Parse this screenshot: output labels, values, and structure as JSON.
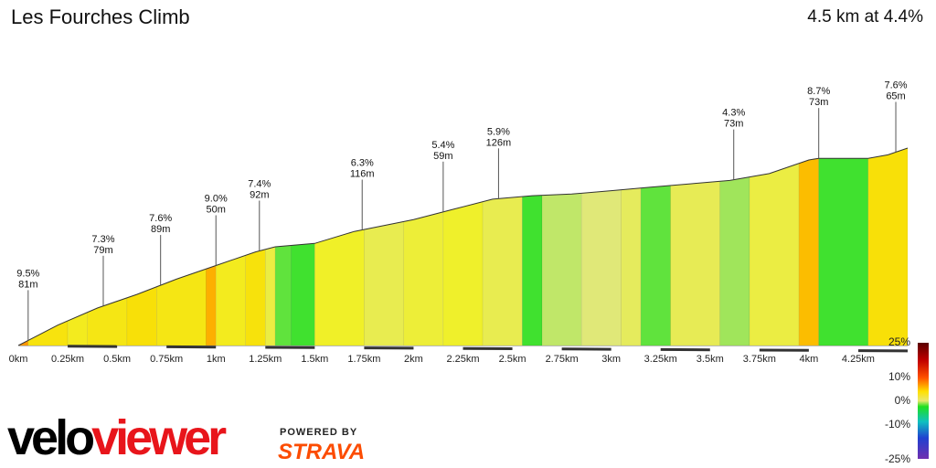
{
  "title": "Les Fourches Climb",
  "summary": "4.5 km at 4.4%",
  "branding": {
    "logo_part1": "velo",
    "logo_part2": "viewer",
    "powered_by": "POWERED BY",
    "strava": "STRAVA"
  },
  "colors": {
    "line": "#333333",
    "shade": "#555555"
  },
  "chart_data": {
    "type": "area",
    "xlabel": "",
    "ylabel": "",
    "x_ticks": [
      "0km",
      "0.25km",
      "0.5km",
      "0.75km",
      "1km",
      "1.25km",
      "1.5km",
      "1.75km",
      "2km",
      "2.25km",
      "2.5km",
      "2.75km",
      "3km",
      "3.25km",
      "3.5km",
      "3.75km",
      "4km",
      "4.25km"
    ],
    "xlim_km": [
      0,
      4.5
    ],
    "profile_x_km": [
      0,
      0.05,
      0.2,
      0.4,
      0.6,
      0.8,
      1.0,
      1.2,
      1.3,
      1.5,
      1.7,
      2.0,
      2.2,
      2.4,
      2.6,
      2.8,
      3.0,
      3.2,
      3.4,
      3.6,
      3.8,
      4.0,
      4.05,
      4.3,
      4.4,
      4.5
    ],
    "profile_rel_height": [
      0,
      0.03,
      0.12,
      0.22,
      0.3,
      0.39,
      0.47,
      0.55,
      0.58,
      0.6,
      0.67,
      0.74,
      0.8,
      0.86,
      0.88,
      0.89,
      0.91,
      0.93,
      0.95,
      0.97,
      1.01,
      1.09,
      1.1,
      1.1,
      1.12,
      1.16
    ],
    "segments": [
      {
        "start_km": 0.0,
        "end_km": 0.05,
        "grade": 9.5
      },
      {
        "start_km": 0.05,
        "end_km": 0.25,
        "grade": 7.3
      },
      {
        "start_km": 0.25,
        "end_km": 0.35,
        "grade": 6.5
      },
      {
        "start_km": 0.35,
        "end_km": 0.55,
        "grade": 7.0
      },
      {
        "start_km": 0.55,
        "end_km": 0.7,
        "grade": 7.6
      },
      {
        "start_km": 0.7,
        "end_km": 0.95,
        "grade": 7.0
      },
      {
        "start_km": 0.95,
        "end_km": 1.0,
        "grade": 9.0
      },
      {
        "start_km": 1.0,
        "end_km": 1.15,
        "grade": 6.5
      },
      {
        "start_km": 1.15,
        "end_km": 1.25,
        "grade": 7.4
      },
      {
        "start_km": 1.25,
        "end_km": 1.3,
        "grade": 5.0
      },
      {
        "start_km": 1.3,
        "end_km": 1.38,
        "grade": 1.0
      },
      {
        "start_km": 1.38,
        "end_km": 1.5,
        "grade": 0.5
      },
      {
        "start_km": 1.5,
        "end_km": 1.75,
        "grade": 6.0
      },
      {
        "start_km": 1.75,
        "end_km": 1.95,
        "grade": 4.5
      },
      {
        "start_km": 1.95,
        "end_km": 2.15,
        "grade": 5.4
      },
      {
        "start_km": 2.15,
        "end_km": 2.35,
        "grade": 5.9
      },
      {
        "start_km": 2.35,
        "end_km": 2.55,
        "grade": 4.5
      },
      {
        "start_km": 2.55,
        "end_km": 2.65,
        "grade": 0.5
      },
      {
        "start_km": 2.65,
        "end_km": 2.85,
        "grade": 2.5
      },
      {
        "start_km": 2.85,
        "end_km": 3.05,
        "grade": 3.0
      },
      {
        "start_km": 3.05,
        "end_km": 3.15,
        "grade": 4.0
      },
      {
        "start_km": 3.15,
        "end_km": 3.3,
        "grade": 1.0
      },
      {
        "start_km": 3.3,
        "end_km": 3.55,
        "grade": 4.3
      },
      {
        "start_km": 3.55,
        "end_km": 3.7,
        "grade": 2.0
      },
      {
        "start_km": 3.7,
        "end_km": 3.95,
        "grade": 5.0
      },
      {
        "start_km": 3.95,
        "end_km": 4.05,
        "grade": 8.7
      },
      {
        "start_km": 4.05,
        "end_km": 4.3,
        "grade": 0.5
      },
      {
        "start_km": 4.3,
        "end_km": 4.5,
        "grade": 7.6
      }
    ],
    "annotations": [
      {
        "x_km": 0.05,
        "grade": "9.5%",
        "length": "81m"
      },
      {
        "x_km": 0.43,
        "grade": "7.3%",
        "length": "79m"
      },
      {
        "x_km": 0.72,
        "grade": "7.6%",
        "length": "89m"
      },
      {
        "x_km": 1.0,
        "grade": "9.0%",
        "length": "50m"
      },
      {
        "x_km": 1.22,
        "grade": "7.4%",
        "length": "92m"
      },
      {
        "x_km": 1.74,
        "grade": "6.3%",
        "length": "116m"
      },
      {
        "x_km": 2.15,
        "grade": "5.4%",
        "length": "59m"
      },
      {
        "x_km": 2.43,
        "grade": "5.9%",
        "length": "126m"
      },
      {
        "x_km": 3.62,
        "grade": "4.3%",
        "length": "73m"
      },
      {
        "x_km": 4.05,
        "grade": "8.7%",
        "length": "73m"
      },
      {
        "x_km": 4.44,
        "grade": "7.6%",
        "length": "65m"
      }
    ],
    "legend": {
      "ticks": [
        "25%",
        "10%",
        "0%",
        "-10%",
        "-25%"
      ],
      "placement": "bottom-right"
    }
  }
}
